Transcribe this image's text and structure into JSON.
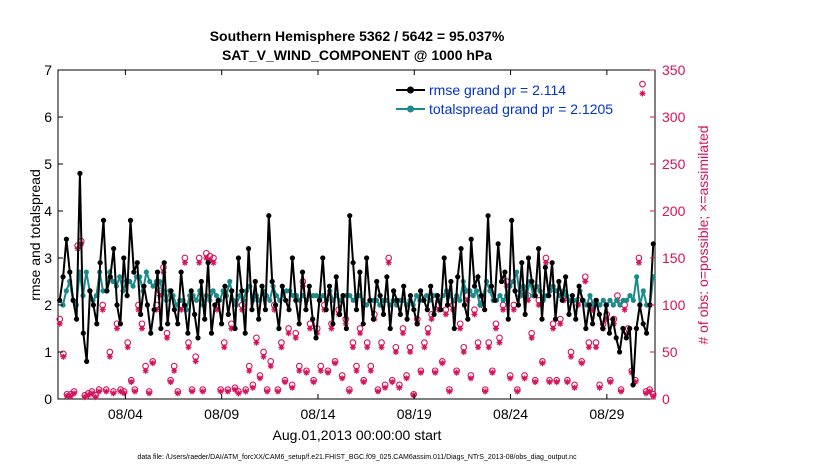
{
  "chart_data": {
    "type": "line",
    "title": "Southern Hemisphere 5362 / 5642 = 95.037%",
    "subtitle": "SAT_V_WIND_COMPONENT @ 1000 hPa",
    "xlabel": "Aug.01,2013 00:00:00 start",
    "ylabel_left": "rmse and totalspread",
    "ylabel_right": "# of obs: o=possible; ×=assimilated",
    "footer": "data file: /Users/raeder/DAI/ATM_forcXX/CAM6_setup/f.e21.FHIST_BGC.f09_025.CAM6assim.011/Diags_NTrS_2013-08/obs_diag_output.nc",
    "xlim": [
      0.5,
      31.5
    ],
    "ylim_left": [
      0,
      7
    ],
    "ylim_right": [
      0,
      350
    ],
    "x_ticks": [
      4,
      9,
      14,
      19,
      24,
      29
    ],
    "x_tick_labels": [
      "08/04",
      "08/09",
      "08/14",
      "08/19",
      "08/24",
      "08/29"
    ],
    "y_ticks_left": [
      0,
      1,
      2,
      3,
      4,
      5,
      6,
      7
    ],
    "y_ticks_right": [
      0,
      50,
      100,
      150,
      200,
      250,
      300,
      350
    ],
    "colors": {
      "rmse": "#000000",
      "spread": "#1a8a8a",
      "obs": "#d6135c",
      "legend_text": "#0033cc"
    },
    "series": [
      {
        "name": "rmse grand pr = 2.114",
        "axis": "left",
        "values": [
          2.1,
          2.6,
          3.4,
          2.7,
          2.1,
          1.7,
          4.8,
          1.4,
          0.8,
          2.3,
          2.0,
          1.6,
          2.9,
          3.8,
          2.3,
          2.6,
          3.2,
          2.0,
          1.6,
          3.0,
          2.2,
          3.8,
          2.7,
          2.9,
          1.8,
          2.4,
          2.0,
          1.4,
          1.9,
          2.7,
          1.5,
          2.9,
          1.6,
          2.3,
          1.9,
          1.6,
          2.7,
          2.0,
          1.4,
          2.3,
          1.8,
          1.3,
          2.5,
          1.7,
          2.9,
          1.4,
          2.0,
          2.1,
          1.6,
          2.4,
          1.8,
          2.3,
          1.5,
          3.0,
          2.3,
          1.4,
          3.2,
          1.9,
          2.5,
          1.7,
          2.4,
          1.9,
          3.9,
          2.5,
          2.0,
          1.5,
          2.4,
          2.1,
          1.9,
          3.0,
          2.1,
          1.6,
          2.7,
          1.9,
          2.4,
          1.7,
          1.3,
          2.1,
          3.0,
          1.9,
          2.4,
          1.6,
          2.6,
          1.8,
          2.2,
          1.5,
          3.9,
          2.9,
          1.9,
          2.7,
          1.6,
          3.0,
          2.1,
          1.7,
          2.5,
          2.2,
          1.8,
          2.6,
          1.5,
          2.3,
          2.1,
          1.8,
          2.4,
          1.7,
          2.2,
          1.9,
          1.6,
          2.3,
          2.1,
          1.9,
          2.4,
          1.8,
          2.2,
          1.9,
          3.0,
          2.0,
          2.5,
          1.5,
          2.6,
          3.2,
          2.0,
          1.7,
          3.4,
          2.4,
          2.6,
          2.2,
          1.9,
          3.9,
          2.4,
          2.1,
          3.3,
          2.5,
          2.7,
          1.7,
          3.8,
          2.3,
          2.0,
          2.9,
          1.8,
          3.0,
          2.5,
          2.2,
          3.2,
          1.7,
          2.8,
          2.2,
          2.9,
          1.7,
          2.5,
          2.1,
          2.6,
          1.8,
          2.2,
          1.7,
          2.4,
          2.1,
          1.5,
          2.0,
          1.6,
          2.1,
          1.8,
          1.5,
          2.0,
          1.4,
          1.7,
          1.3,
          1.0,
          1.5,
          1.3,
          1.5,
          0.3,
          1.5,
          2.0,
          1.6,
          1.4,
          2.0,
          3.3
        ]
      },
      {
        "name": "totalspread grand pr = 2.1205",
        "axis": "left",
        "values": [
          2.1,
          2.0,
          2.3,
          2.5,
          2.1,
          2.0,
          2.7,
          2.2,
          2.7,
          2.3,
          2.1,
          2.2,
          2.7,
          2.3,
          2.3,
          2.7,
          2.5,
          2.4,
          2.6,
          2.3,
          2.5,
          2.5,
          2.4,
          2.6,
          2.6,
          2.3,
          2.7,
          2.5,
          2.4,
          2.5,
          2.5,
          2.3,
          2.1,
          2.3,
          2.2,
          2.0,
          2.1,
          2.1,
          1.9,
          2.2,
          2.2,
          2.1,
          2.3,
          2.0,
          2.2,
          2.1,
          2.3,
          2.2,
          2.1,
          2.3,
          2.2,
          2.5,
          2.1,
          2.0,
          2.2,
          2.1,
          2.3,
          2.4,
          2.1,
          2.2,
          2.1,
          2.3,
          2.2,
          2.1,
          2.4,
          2.2,
          2.1,
          2.2,
          2.3,
          2.3,
          2.2,
          2.2,
          2.1,
          2.2,
          2.1,
          2.2,
          2.2,
          2.2,
          2.1,
          2.2,
          2.1,
          2.3,
          2.1,
          2.2,
          2.1,
          2.2,
          2.2,
          2.2,
          2.1,
          2.2,
          2.2,
          2.1,
          2.0,
          2.1,
          2.1,
          2.1,
          2.0,
          2.1,
          2.1,
          2.0,
          2.1,
          2.0,
          2.1,
          2.1,
          2.0,
          2.1,
          2.0,
          2.2,
          2.1,
          2.1,
          2.2,
          2.1,
          2.2,
          2.2,
          2.1,
          2.2,
          2.3,
          2.2,
          2.1,
          2.2,
          2.1,
          2.5,
          2.3,
          2.3,
          2.2,
          2.3,
          2.0,
          2.2,
          2.5,
          2.3,
          2.1,
          2.1,
          2.2,
          2.1,
          2.2,
          2.4,
          2.5,
          2.7,
          2.2,
          2.4,
          2.2,
          2.5,
          2.2,
          2.4,
          2.3,
          2.1,
          2.2,
          2.3,
          2.4,
          2.3,
          2.2,
          2.3,
          2.2,
          2.1,
          2.1,
          2.1,
          2.3,
          2.1,
          2.0,
          2.2,
          2.0,
          2.1,
          2.0,
          2.1,
          2.0,
          2.1,
          2.0,
          2.1,
          2.0,
          2.1,
          2.1,
          2.2,
          2.1,
          2.6,
          2.0,
          2.3,
          2.0,
          2.0,
          2.6
        ]
      },
      {
        "name": "obs possible",
        "axis": "right",
        "values": [
          85,
          48,
          5,
          5,
          8,
          163,
          168,
          4,
          6,
          8,
          4,
          10,
          100,
          10,
          50,
          8,
          80,
          10,
          8,
          60,
          20,
          10,
          100,
          80,
          35,
          8,
          40,
          100,
          115,
          140,
          70,
          20,
          35,
          8,
          100,
          150,
          60,
          10,
          45,
          150,
          10,
          155,
          152,
          150,
          100,
          10,
          60,
          10,
          80,
          12,
          8,
          100,
          10,
          35,
          15,
          65,
          25,
          50,
          10,
          40,
          100,
          10,
          60,
          20,
          75,
          15,
          70,
          35,
          125,
          30,
          80,
          20,
          75,
          35,
          100,
          30,
          80,
          40,
          95,
          25,
          85,
          10,
          60,
          35,
          75,
          20,
          60,
          35,
          90,
          10,
          60,
          15,
          150,
          20,
          55,
          15,
          75,
          25,
          55,
          5,
          85,
          30,
          60,
          75,
          90,
          30,
          100,
          40,
          95,
          10,
          100,
          30,
          80,
          55,
          110,
          25,
          95,
          60,
          105,
          10,
          60,
          30,
          80,
          65,
          100,
          125,
          25,
          100,
          10,
          115,
          25,
          110,
          70,
          20,
          105,
          40,
          150,
          20,
          80,
          20,
          85,
          110,
          20,
          50,
          15,
          105,
          40,
          130,
          60,
          100,
          60,
          15,
          80,
          90,
          20,
          85,
          110,
          10,
          100,
          75,
          30,
          20,
          150,
          335,
          8,
          10,
          5
        ]
      },
      {
        "name": "obs assimilated",
        "axis": "right",
        "values": [
          80,
          45,
          3,
          3,
          6,
          160,
          165,
          2,
          4,
          6,
          2,
          8,
          95,
          8,
          45,
          6,
          75,
          8,
          6,
          55,
          18,
          8,
          95,
          75,
          30,
          6,
          38,
          95,
          110,
          135,
          65,
          18,
          30,
          6,
          95,
          145,
          55,
          8,
          40,
          145,
          8,
          150,
          148,
          145,
          95,
          8,
          55,
          8,
          75,
          10,
          6,
          95,
          8,
          30,
          12,
          60,
          22,
          45,
          8,
          35,
          95,
          8,
          55,
          18,
          70,
          12,
          65,
          30,
          120,
          28,
          75,
          18,
          70,
          30,
          95,
          28,
          75,
          38,
          90,
          22,
          80,
          8,
          55,
          30,
          70,
          18,
          55,
          30,
          85,
          8,
          55,
          12,
          145,
          18,
          50,
          12,
          70,
          22,
          50,
          4,
          80,
          28,
          55,
          70,
          85,
          28,
          95,
          38,
          90,
          8,
          95,
          28,
          75,
          50,
          105,
          22,
          90,
          55,
          100,
          8,
          55,
          28,
          75,
          60,
          95,
          120,
          22,
          95,
          8,
          110,
          22,
          105,
          65,
          18,
          100,
          38,
          145,
          18,
          75,
          18,
          80,
          105,
          18,
          45,
          12,
          100,
          38,
          125,
          55,
          95,
          55,
          12,
          75,
          85,
          18,
          80,
          105,
          8,
          95,
          70,
          28,
          18,
          145,
          325,
          6,
          8,
          3
        ]
      }
    ],
    "legend": [
      "rmse grand pr = 2.114",
      "totalspread grand pr = 2.1205"
    ]
  }
}
